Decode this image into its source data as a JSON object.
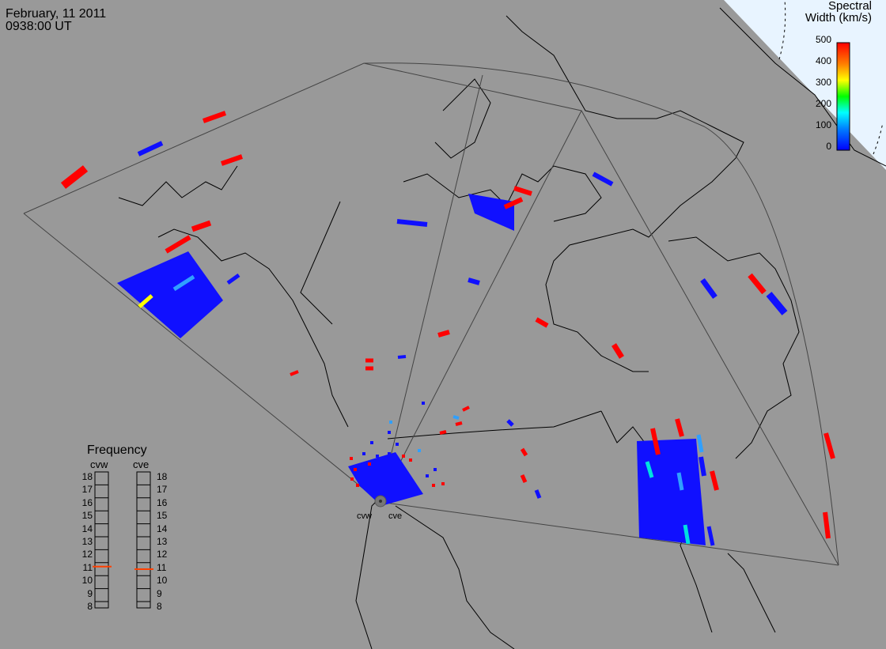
{
  "header": {
    "date": "February, 11 2011",
    "time": "0938:00 UT"
  },
  "colorbar": {
    "title_line1": "Spectral",
    "title_line2": "Width (km/s)",
    "ticks": [
      "500",
      "400",
      "300",
      "200",
      "100",
      "0"
    ],
    "colors": [
      "#0000ff",
      "#0080ff",
      "#00ffff",
      "#00ff00",
      "#ffff00",
      "#ff8000",
      "#ff0000"
    ]
  },
  "frequency": {
    "title": "Frequency",
    "radars": [
      "cvw",
      "cve"
    ],
    "ticks": [
      "18",
      "17",
      "16",
      "15",
      "14",
      "13",
      "12",
      "11",
      "10",
      "9",
      "8"
    ],
    "values_mhz": [
      10.7,
      10.5
    ],
    "marker_color": "#ff4000"
  },
  "sites": [
    {
      "name": "cvw"
    },
    {
      "name": "cve"
    }
  ],
  "colors": {
    "land": "#999999",
    "ocean_corner": "#e8f4ff",
    "low_width": "#1010ff",
    "high_width": "#ff0000"
  }
}
